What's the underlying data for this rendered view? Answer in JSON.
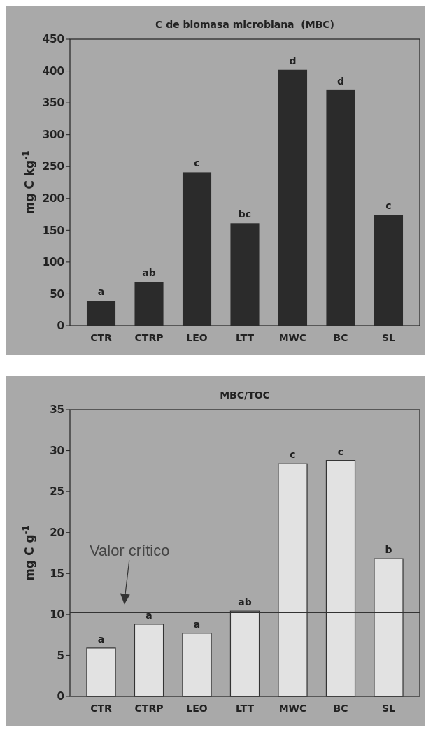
{
  "chart_data": [
    {
      "type": "bar",
      "title": "C de biomasa microbiana  (MBC)",
      "ylabel": "mg C kg$^{-1}$",
      "categories": [
        "CTR",
        "CTRP",
        "LEO",
        "LTT",
        "MWC",
        "BC",
        "SL"
      ],
      "values": [
        39,
        69,
        241,
        161,
        402,
        370,
        174
      ],
      "color": "#2b2b2b",
      "ylim": [
        0,
        450
      ],
      "yticks": [
        0,
        50,
        100,
        150,
        200,
        250,
        300,
        350,
        400,
        450
      ],
      "grid": false,
      "annotations": [
        {
          "text": "a",
          "x": "CTR",
          "y": 39
        },
        {
          "text": "ab",
          "x": "CTRP",
          "y": 69
        },
        {
          "text": "c",
          "x": "LEO",
          "y": 241
        },
        {
          "text": "bc",
          "x": "LTT",
          "y": 161
        },
        {
          "text": "d",
          "x": "MWC",
          "y": 402
        },
        {
          "text": "d",
          "x": "BC",
          "y": 370
        },
        {
          "text": "c",
          "x": "SL",
          "y": 174
        }
      ]
    },
    {
      "type": "bar",
      "title": "MBC/TOC",
      "ylabel": "mg C g$^{-1}$",
      "categories": [
        "CTR",
        "CTRP",
        "LEO",
        "LTT",
        "MWC",
        "BC",
        "SL"
      ],
      "values": [
        5.9,
        8.8,
        7.7,
        10.4,
        28.4,
        28.8,
        16.8
      ],
      "color": "#e2e2e2",
      "ylim": [
        0,
        35
      ],
      "yticks": [
        0,
        5,
        10,
        15,
        20,
        25,
        30,
        35
      ],
      "grid": false,
      "ref_lines": [
        {
          "axis": "y",
          "value": 10.2,
          "label": "Valor crítico",
          "color": "#333333"
        }
      ],
      "annotations": [
        {
          "text": "a",
          "x": "CTR",
          "y": 5.9
        },
        {
          "text": "a",
          "x": "CTRP",
          "y": 8.8
        },
        {
          "text": "a",
          "x": "LEO",
          "y": 7.7
        },
        {
          "text": "ab",
          "x": "LTT",
          "y": 10.4
        },
        {
          "text": "c",
          "x": "MWC",
          "y": 28.4
        },
        {
          "text": "c",
          "x": "BC",
          "y": 28.8
        },
        {
          "text": "b",
          "x": "SL",
          "y": 16.8
        }
      ]
    }
  ]
}
